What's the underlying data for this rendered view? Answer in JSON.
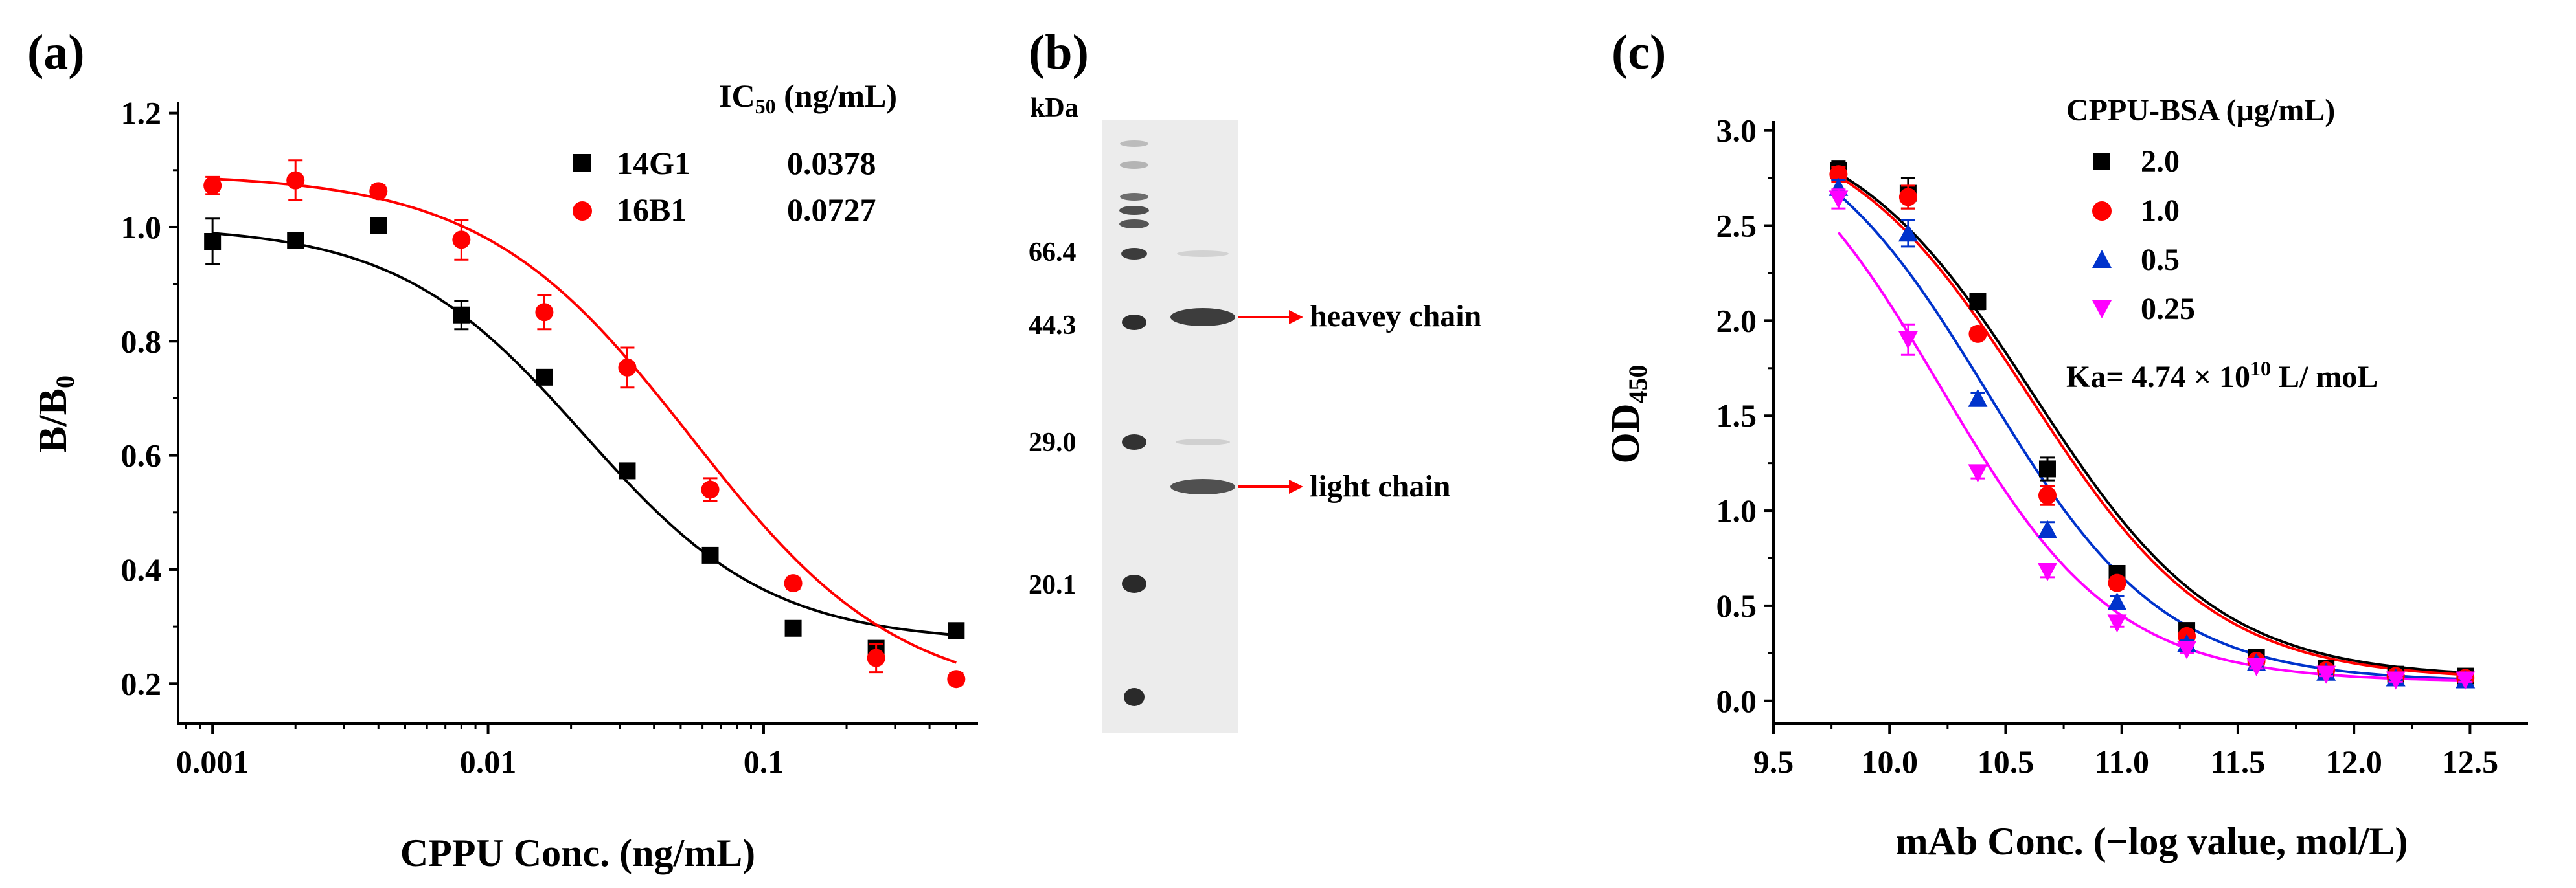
{
  "panels": {
    "a": {
      "label": "(a)"
    },
    "b": {
      "label": "(b)",
      "unit": "kDa",
      "markers": [
        "66.4",
        "44.3",
        "29.0",
        "20.1"
      ],
      "annotations": [
        "heavey chain",
        "light chain"
      ]
    },
    "c": {
      "label": "(c)"
    }
  },
  "chart_data": [
    {
      "type": "scatter",
      "panel": "a",
      "xlabel": "CPPU Conc. (ng/mL)",
      "ylabel_main": "B/B",
      "ylabel_sub": "0",
      "x_scale": "log",
      "xlim": [
        0.00075,
        0.6
      ],
      "ylim": [
        0.13,
        1.22
      ],
      "xticks": [
        0.001,
        0.01,
        0.1
      ],
      "xtick_labels": [
        "0.001",
        "0.01",
        "0.1"
      ],
      "yticks": [
        0.2,
        0.4,
        0.6,
        0.8,
        1.0,
        1.2
      ],
      "ytick_labels": [
        "0.2",
        "0.4",
        "0.6",
        "0.8",
        "1.0",
        "1.2"
      ],
      "legend_title_main": "IC",
      "legend_title_sub": "50",
      "legend_title_unit": " (ng/mL)",
      "legend_position": "top-right",
      "series": [
        {
          "name": "14G1",
          "ic50": "0.0378",
          "color": "#000000",
          "marker": "square",
          "x": [
            0.001,
            0.002,
            0.004,
            0.008,
            0.016,
            0.032,
            0.064,
            0.128,
            0.256,
            0.5
          ],
          "y": [
            0.975,
            0.977,
            1.003,
            0.846,
            0.737,
            0.573,
            0.425,
            0.297,
            0.262,
            0.293
          ],
          "err": [
            0.04,
            0.012,
            0.01,
            0.025,
            0.008,
            0.01,
            0.01,
            0.01,
            0.012,
            0.01
          ],
          "fit": {
            "top": 1.003,
            "bottom": 0.272,
            "ec50": 0.0222,
            "hill": 1.28
          }
        },
        {
          "name": "16B1",
          "ic50": "0.0727",
          "color": "#ff0000",
          "marker": "circle",
          "x": [
            0.001,
            0.002,
            0.004,
            0.008,
            0.016,
            0.032,
            0.064,
            0.128,
            0.256,
            0.5
          ],
          "y": [
            1.073,
            1.082,
            1.063,
            0.978,
            0.851,
            0.754,
            0.54,
            0.376,
            0.245,
            0.208
          ],
          "err": [
            0.015,
            0.035,
            0.01,
            0.035,
            0.03,
            0.035,
            0.02,
            0.01,
            0.025,
            0.01
          ],
          "fit": {
            "top": 1.094,
            "bottom": 0.17,
            "ec50": 0.0545,
            "hill": 1.15
          }
        }
      ]
    },
    {
      "type": "scatter",
      "panel": "c",
      "xlabel": "mAb Conc. (−log value, mol/L)",
      "ylabel_main": "OD",
      "ylabel_sub": "450",
      "xlim": [
        9.5,
        12.75
      ],
      "ylim": [
        -0.12,
        3.05
      ],
      "xticks": [
        9.5,
        10.0,
        10.5,
        11.0,
        11.5,
        12.0,
        12.5
      ],
      "xtick_labels": [
        "9.5",
        "10.0",
        "10.5",
        "11.0",
        "11.5",
        "12.0",
        "12.5"
      ],
      "yticks": [
        0.0,
        0.5,
        1.0,
        1.5,
        2.0,
        2.5,
        3.0
      ],
      "ytick_labels": [
        "0.0",
        "0.5",
        "1.0",
        "1.5",
        "2.0",
        "2.5",
        "3.0"
      ],
      "legend_title": "CPPU-BSA (μg/mL)",
      "legend_position": "top-right",
      "annotation_main": "Ka= 4.74 × 10",
      "annotation_sup": "10",
      "annotation_tail": " L/ moL",
      "series": [
        {
          "name": "2.0",
          "color": "#000000",
          "marker": "square",
          "x": [
            9.78,
            10.08,
            10.38,
            10.68,
            10.98,
            11.28,
            11.58,
            11.88,
            12.18,
            12.48
          ],
          "y": [
            2.79,
            2.67,
            2.1,
            1.22,
            0.67,
            0.37,
            0.23,
            0.17,
            0.14,
            0.13
          ],
          "err": [
            0.05,
            0.08,
            0.04,
            0.06,
            0.03,
            0.02,
            0.02,
            0.01,
            0.01,
            0.01
          ],
          "fit": {
            "top": 3.1,
            "bottom": 0.12,
            "x50": 10.62,
            "slope": 2.5
          }
        },
        {
          "name": "1.0",
          "color": "#ff0000",
          "marker": "circle",
          "x": [
            9.78,
            10.08,
            10.38,
            10.68,
            10.98,
            11.28,
            11.58,
            11.88,
            12.18,
            12.48
          ],
          "y": [
            2.77,
            2.65,
            1.93,
            1.08,
            0.62,
            0.34,
            0.21,
            0.16,
            0.13,
            0.12
          ],
          "err": [
            0.04,
            0.06,
            0.03,
            0.05,
            0.03,
            0.02,
            0.02,
            0.01,
            0.01,
            0.01
          ],
          "fit": {
            "top": 3.1,
            "bottom": 0.11,
            "x50": 10.6,
            "slope": 2.5
          }
        },
        {
          "name": "0.5",
          "color": "#0033cc",
          "marker": "triangle-up",
          "x": [
            9.78,
            10.08,
            10.38,
            10.68,
            10.98,
            11.28,
            11.58,
            11.88,
            12.18,
            12.48
          ],
          "y": [
            2.7,
            2.46,
            1.59,
            0.9,
            0.52,
            0.3,
            0.2,
            0.15,
            0.12,
            0.11
          ],
          "err": [
            0.04,
            0.07,
            0.03,
            0.04,
            0.03,
            0.02,
            0.02,
            0.01,
            0.01,
            0.01
          ],
          "fit": {
            "top": 3.15,
            "bottom": 0.1,
            "x50": 10.42,
            "slope": 2.6
          }
        },
        {
          "name": "0.25",
          "color": "#ff00ff",
          "marker": "triangle-down",
          "x": [
            9.78,
            10.08,
            10.38,
            10.68,
            10.98,
            11.28,
            11.58,
            11.88,
            12.18,
            12.48
          ],
          "y": [
            2.64,
            1.9,
            1.2,
            0.68,
            0.41,
            0.27,
            0.18,
            0.14,
            0.11,
            0.11
          ],
          "err": [
            0.05,
            0.08,
            0.03,
            0.03,
            0.02,
            0.02,
            0.01,
            0.01,
            0.01,
            0.01
          ],
          "fit": {
            "top": 3.2,
            "bottom": 0.1,
            "x50": 10.22,
            "slope": 2.65
          }
        }
      ]
    }
  ]
}
